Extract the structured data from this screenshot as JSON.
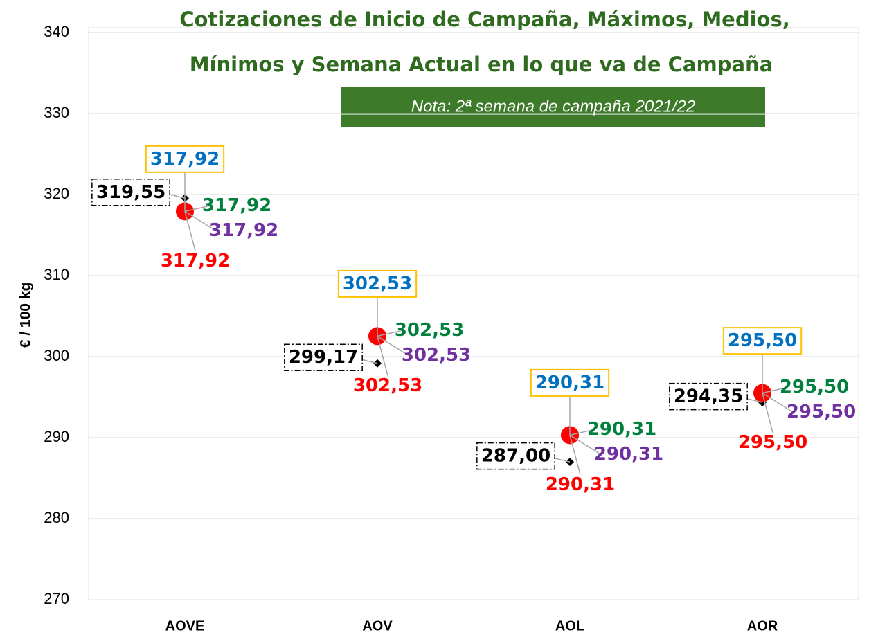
{
  "chart_data": {
    "type": "scatter",
    "title_lines": [
      "Cotizaciones de Inicio de Campaña, Máximos, Medios,",
      "Mínimos y Semana Actual en lo que va de Campaña"
    ],
    "note": "Nota: 2ª semana de campaña 2021/22",
    "y_label": "€ / 100 kg",
    "categories": [
      "AOVE",
      "AOV",
      "AOL",
      "AOR"
    ],
    "ylim": [
      270,
      340
    ],
    "yticks": [
      270,
      280,
      290,
      300,
      310,
      320,
      330,
      340
    ],
    "grid": true,
    "series": [
      {
        "color": "#000000",
        "values": [
          319.55,
          299.17,
          287.0,
          294.35
        ],
        "value_labels": [
          "319,55",
          "299,17",
          "287,00",
          "294,35"
        ]
      },
      {
        "color": "#0070c0",
        "values": [
          317.92,
          302.53,
          290.31,
          295.5
        ],
        "value_labels": [
          "317,92",
          "302,53",
          "290,31",
          "295,50"
        ]
      },
      {
        "color": "#00803c",
        "values": [
          317.92,
          302.53,
          290.31,
          295.5
        ],
        "value_labels": [
          "317,92",
          "302,53",
          "290,31",
          "295,50"
        ]
      },
      {
        "color": "#7030a0",
        "values": [
          317.92,
          302.53,
          290.31,
          295.5
        ],
        "value_labels": [
          "317,92",
          "302,53",
          "290,31",
          "295,50"
        ]
      },
      {
        "color": "#ff0000",
        "values": [
          317.92,
          302.53,
          290.31,
          295.5
        ],
        "value_labels": [
          "317,92",
          "302,53",
          "290,31",
          "295,50"
        ]
      }
    ]
  }
}
